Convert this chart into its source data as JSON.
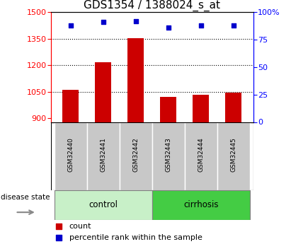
{
  "title": "GDS1354 / 1388024_s_at",
  "samples": [
    "GSM32440",
    "GSM32441",
    "GSM32442",
    "GSM32443",
    "GSM32444",
    "GSM32445"
  ],
  "counts": [
    1060,
    1218,
    1355,
    1022,
    1032,
    1045
  ],
  "percentiles": [
    88,
    91,
    92,
    86,
    88,
    88
  ],
  "ylim_left": [
    880,
    1500
  ],
  "ylim_right": [
    0,
    100
  ],
  "yticks_left": [
    900,
    1050,
    1200,
    1350,
    1500
  ],
  "yticks_right": [
    0,
    25,
    50,
    75,
    100
  ],
  "ytick_labels_right": [
    "0",
    "25",
    "50",
    "75",
    "100%"
  ],
  "bar_color": "#cc0000",
  "scatter_color": "#0000cc",
  "bar_width": 0.5,
  "control_color": "#c8f0c8",
  "cirrhosis_color": "#44cc44",
  "tick_area_color": "#c8c8c8",
  "title_fontsize": 11,
  "tick_fontsize": 8,
  "label_fontsize": 8
}
